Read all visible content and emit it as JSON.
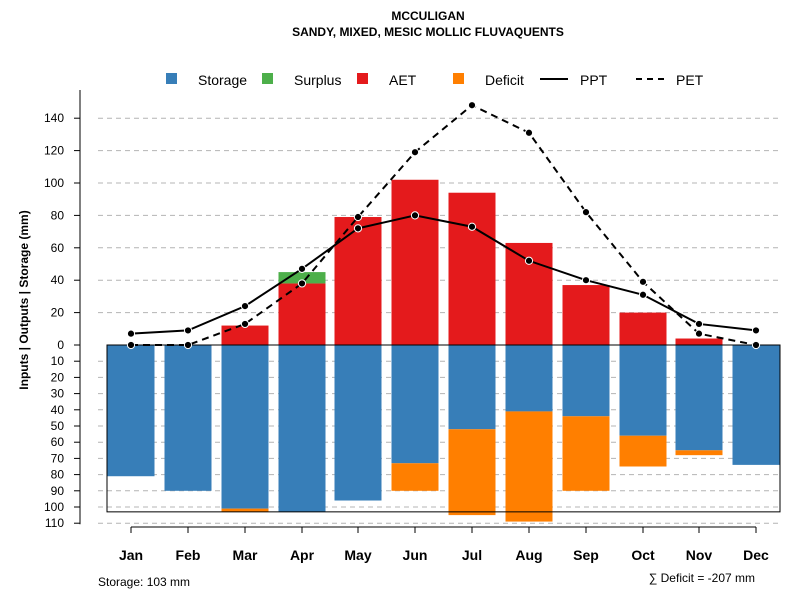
{
  "chart_data": {
    "type": "bar",
    "title": "MCCULIGAN",
    "subtitle": "SANDY, MIXED, MESIC MOLLIC FLUVAQUENTS",
    "ylabel": "Inputs | Outputs | Storage    (mm)",
    "categories": [
      "Jan",
      "Feb",
      "Mar",
      "Apr",
      "May",
      "Jun",
      "Jul",
      "Aug",
      "Sep",
      "Oct",
      "Nov",
      "Dec"
    ],
    "upper_ylim": [
      0,
      150
    ],
    "upper_ticks": [
      0,
      20,
      40,
      60,
      80,
      100,
      120,
      140
    ],
    "lower_ylim": [
      0,
      110
    ],
    "lower_ticks": [
      0,
      10,
      20,
      30,
      40,
      50,
      60,
      70,
      80,
      90,
      100,
      110
    ],
    "storage_capacity": 103,
    "legend": [
      "Storage",
      "Surplus",
      "AET",
      "Deficit",
      "PPT",
      "PET"
    ],
    "colors": {
      "storage": "#377EB8",
      "surplus": "#4DAF4A",
      "aet": "#E41A1C",
      "deficit": "#FF7F00",
      "line": "#000000",
      "grid": "#b4b4b4"
    },
    "series": [
      {
        "name": "AET",
        "values": [
          0,
          0,
          12,
          38,
          79,
          102,
          94,
          63,
          37,
          20,
          4,
          0
        ]
      },
      {
        "name": "Surplus",
        "values": [
          0,
          0,
          0,
          7,
          0,
          0,
          0,
          0,
          0,
          0,
          0,
          0
        ]
      },
      {
        "name": "Storage",
        "values": [
          81,
          90,
          101,
          103,
          96,
          73,
          52,
          41,
          44,
          56,
          65,
          74
        ]
      },
      {
        "name": "Deficit",
        "values": [
          0,
          0,
          2,
          0,
          0,
          17,
          53,
          68,
          46,
          19,
          3,
          0
        ]
      },
      {
        "name": "PPT",
        "values": [
          7,
          9,
          24,
          47,
          72,
          80,
          73,
          52,
          40,
          31,
          13,
          9
        ]
      },
      {
        "name": "PET",
        "values": [
          0,
          0,
          13,
          38,
          79,
          119,
          148,
          131,
          82,
          39,
          7,
          0
        ]
      }
    ],
    "notes": {
      "storage": "Storage: 103 mm",
      "deficit": "∑ Deficit = -207 mm"
    }
  }
}
